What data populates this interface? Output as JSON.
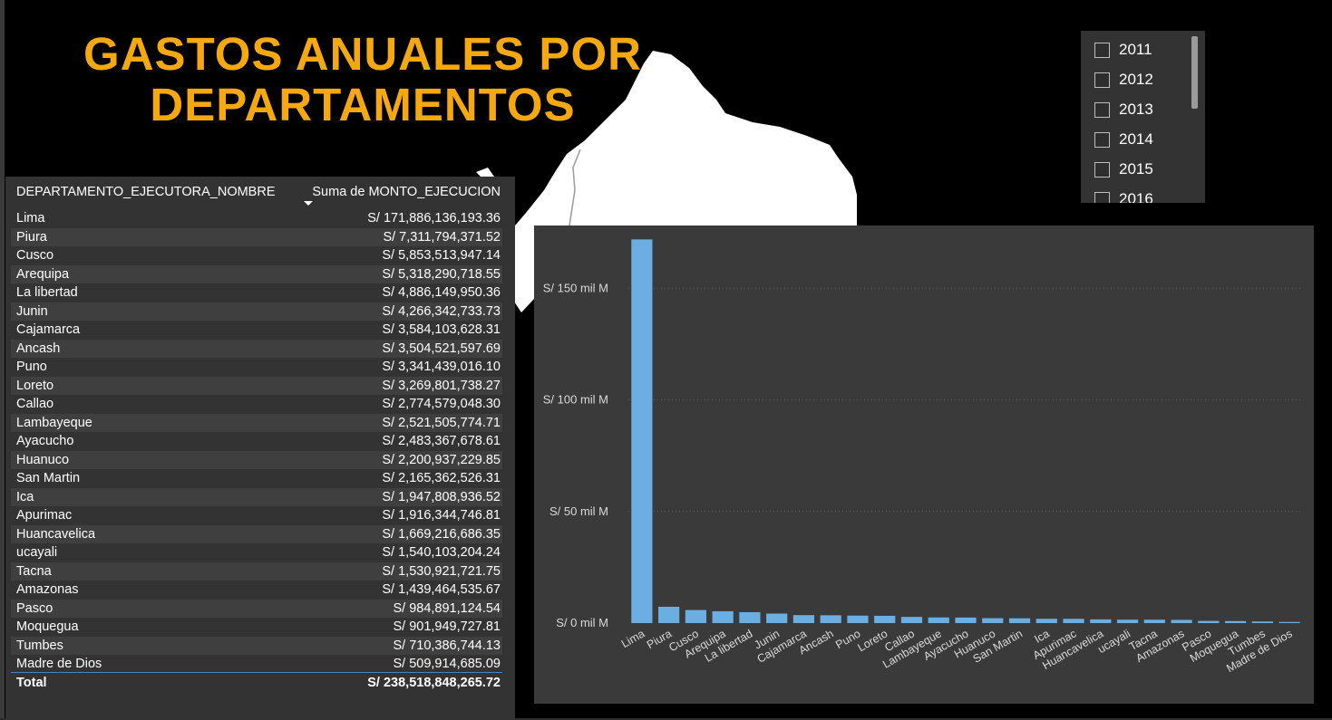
{
  "title": {
    "line1": "GASTOS ANUALES POR",
    "line2": "DEPARTAMENTOS"
  },
  "table": {
    "header_departamento": "DEPARTAMENTO_EJECUTORA_NOMBRE",
    "header_monto": "Suma de MONTO_EJECUCION",
    "rows": [
      {
        "dep": "Lima",
        "val": "S/ 171,886,136,193.36"
      },
      {
        "dep": "Piura",
        "val": "S/ 7,311,794,371.52"
      },
      {
        "dep": "Cusco",
        "val": "S/ 5,853,513,947.14"
      },
      {
        "dep": "Arequipa",
        "val": "S/ 5,318,290,718.55"
      },
      {
        "dep": "La libertad",
        "val": "S/ 4,886,149,950.36"
      },
      {
        "dep": "Junin",
        "val": "S/ 4,266,342,733.73"
      },
      {
        "dep": "Cajamarca",
        "val": "S/ 3,584,103,628.31"
      },
      {
        "dep": "Ancash",
        "val": "S/ 3,504,521,597.69"
      },
      {
        "dep": "Puno",
        "val": "S/ 3,341,439,016.10"
      },
      {
        "dep": "Loreto",
        "val": "S/ 3,269,801,738.27"
      },
      {
        "dep": "Callao",
        "val": "S/ 2,774,579,048.30"
      },
      {
        "dep": "Lambayeque",
        "val": "S/ 2,521,505,774.71"
      },
      {
        "dep": "Ayacucho",
        "val": "S/ 2,483,367,678.61"
      },
      {
        "dep": "Huanuco",
        "val": "S/ 2,200,937,229.85"
      },
      {
        "dep": "San Martin",
        "val": "S/ 2,165,362,526.31"
      },
      {
        "dep": "Ica",
        "val": "S/ 1,947,808,936.52"
      },
      {
        "dep": "Apurimac",
        "val": "S/ 1,916,344,746.81"
      },
      {
        "dep": "Huancavelica",
        "val": "S/ 1,669,216,686.35"
      },
      {
        "dep": "ucayali",
        "val": "S/ 1,540,103,204.24"
      },
      {
        "dep": "Tacna",
        "val": "S/ 1,530,921,721.75"
      },
      {
        "dep": "Amazonas",
        "val": "S/ 1,439,464,535.67"
      },
      {
        "dep": "Pasco",
        "val": "S/ 984,891,124.54"
      },
      {
        "dep": "Moquegua",
        "val": "S/ 901,949,727.81"
      },
      {
        "dep": "Tumbes",
        "val": "S/ 710,386,744.13"
      },
      {
        "dep": "Madre de Dios",
        "val": "S/ 509,914,685.09"
      }
    ],
    "total_label": "Total",
    "total_value": "S/ 238,518,848,265.72"
  },
  "slicer": {
    "items": [
      {
        "label": "2011",
        "checked": false
      },
      {
        "label": "2012",
        "checked": false
      },
      {
        "label": "2013",
        "checked": false
      },
      {
        "label": "2014",
        "checked": false
      },
      {
        "label": "2015",
        "checked": false
      },
      {
        "label": "2016",
        "checked": false
      }
    ]
  },
  "colors": {
    "title": "#f5a90f",
    "bar": "#6aaee2",
    "panel": "#333333",
    "chart_panel": "#3a3a3a"
  },
  "chart_data": {
    "type": "bar",
    "title": "",
    "xlabel": "",
    "ylabel": "",
    "categories": [
      "Lima",
      "Piura",
      "Cusco",
      "Arequipa",
      "La libertad",
      "Junin",
      "Cajamarca",
      "Ancash",
      "Puno",
      "Loreto",
      "Callao",
      "Lambayeque",
      "Ayacucho",
      "Huanuco",
      "San Martin",
      "Ica",
      "Apurimac",
      "Huancavelica",
      "ucayali",
      "Tacna",
      "Amazonas",
      "Pasco",
      "Moquegua",
      "Tumbes",
      "Madre de Dios"
    ],
    "values": [
      171.886,
      7.312,
      5.854,
      5.318,
      4.886,
      4.266,
      3.584,
      3.505,
      3.341,
      3.27,
      2.775,
      2.522,
      2.483,
      2.201,
      2.165,
      1.948,
      1.916,
      1.669,
      1.54,
      1.531,
      1.439,
      0.985,
      0.902,
      0.71,
      0.51
    ],
    "value_unit": "mil M",
    "ylim": [
      0,
      170
    ],
    "yticks": [
      0,
      50,
      100,
      150
    ],
    "ytick_labels": [
      "S/ 0 mil M",
      "S/ 50 mil M",
      "S/ 100 mil M",
      "S/ 150 mil M"
    ],
    "grid": true
  }
}
